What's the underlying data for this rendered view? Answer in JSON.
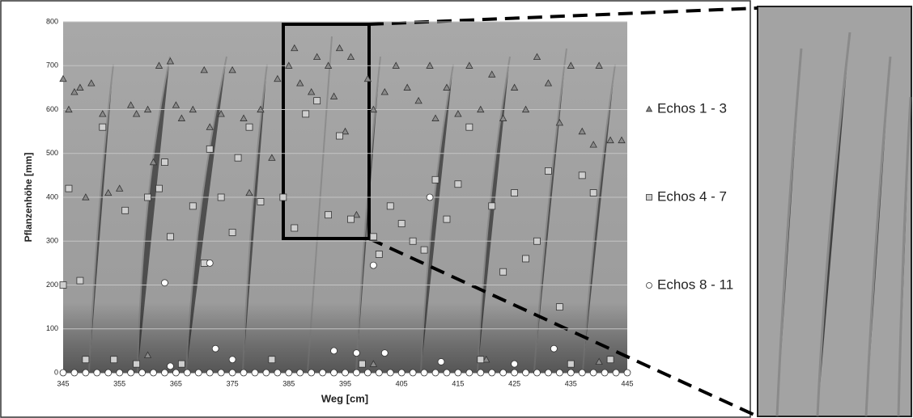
{
  "chart_data": {
    "type": "scatter",
    "xlabel": "Weg [cm]",
    "ylabel": "Pflanzenhöhe [mm]",
    "xlim": [
      345,
      445
    ],
    "xticks": [
      345,
      355,
      365,
      375,
      385,
      395,
      405,
      415,
      425,
      435,
      445
    ],
    "ylim": [
      0,
      800
    ],
    "yticks": [
      0,
      100,
      200,
      300,
      400,
      500,
      600,
      700,
      800
    ],
    "grid": true,
    "legend": "right",
    "series": [
      {
        "name": "Echos 1 - 3",
        "color": "#8a8a8a",
        "marker": "triangle",
        "x": [
          345,
          346,
          347,
          348,
          349,
          350,
          352,
          353,
          355,
          357,
          358,
          360,
          361,
          362,
          364,
          365,
          366,
          368,
          370,
          371,
          373,
          375,
          377,
          378,
          380,
          382,
          383,
          385,
          386,
          387,
          389,
          390,
          392,
          393,
          394,
          395,
          396,
          397,
          399,
          400,
          402,
          404,
          406,
          408,
          410,
          411,
          413,
          415,
          417,
          419,
          421,
          423,
          425,
          427,
          429,
          431,
          433,
          435,
          437,
          439,
          440,
          442,
          444,
          400,
          360,
          420,
          440
        ],
        "y": [
          670,
          600,
          640,
          650,
          400,
          660,
          590,
          410,
          420,
          610,
          590,
          600,
          480,
          700,
          710,
          610,
          580,
          600,
          690,
          560,
          590,
          690,
          580,
          410,
          600,
          490,
          670,
          700,
          740,
          660,
          640,
          720,
          700,
          630,
          740,
          550,
          720,
          360,
          670,
          600,
          640,
          700,
          650,
          620,
          700,
          580,
          650,
          590,
          700,
          600,
          680,
          580,
          650,
          600,
          720,
          660,
          570,
          700,
          550,
          520,
          700,
          530,
          530,
          20,
          40,
          30,
          25
        ]
      },
      {
        "name": "Echos 4 - 7",
        "color": "#cfcfcf",
        "marker": "square",
        "x": [
          345,
          346,
          348,
          349,
          352,
          354,
          356,
          358,
          360,
          362,
          363,
          364,
          366,
          368,
          370,
          371,
          373,
          375,
          376,
          378,
          380,
          382,
          384,
          386,
          388,
          390,
          392,
          394,
          396,
          398,
          400,
          401,
          403,
          405,
          407,
          409,
          411,
          413,
          415,
          417,
          419,
          421,
          423,
          425,
          427,
          429,
          431,
          433,
          435,
          437,
          439,
          442
        ],
        "y": [
          200,
          420,
          210,
          30,
          560,
          30,
          370,
          20,
          400,
          420,
          480,
          310,
          20,
          380,
          250,
          510,
          400,
          320,
          490,
          560,
          390,
          30,
          400,
          330,
          590,
          620,
          360,
          540,
          350,
          20,
          310,
          270,
          380,
          340,
          300,
          280,
          440,
          350,
          430,
          560,
          30,
          380,
          230,
          410,
          260,
          300,
          460,
          150,
          20,
          450,
          410,
          30
        ]
      },
      {
        "name": "Echos 8 - 11",
        "color": "#ffffff",
        "marker": "circle",
        "x": [
          345,
          347,
          349,
          351,
          353,
          355,
          357,
          359,
          361,
          363,
          365,
          367,
          369,
          371,
          373,
          375,
          377,
          379,
          381,
          383,
          385,
          387,
          389,
          391,
          393,
          395,
          397,
          399,
          401,
          403,
          405,
          407,
          409,
          411,
          413,
          415,
          417,
          419,
          421,
          423,
          425,
          427,
          429,
          431,
          433,
          435,
          437,
          439,
          441,
          443,
          445,
          363,
          364,
          371,
          372,
          375,
          393,
          397,
          400,
          402,
          410,
          412,
          425,
          432
        ],
        "y": [
          0,
          0,
          0,
          0,
          0,
          0,
          0,
          0,
          0,
          0,
          0,
          0,
          0,
          0,
          0,
          0,
          0,
          0,
          0,
          0,
          0,
          0,
          0,
          0,
          0,
          0,
          0,
          0,
          0,
          0,
          0,
          0,
          0,
          0,
          0,
          0,
          0,
          0,
          0,
          0,
          0,
          0,
          0,
          0,
          0,
          0,
          0,
          0,
          0,
          0,
          0,
          205,
          15,
          250,
          55,
          30,
          50,
          45,
          245,
          45,
          400,
          25,
          20,
          55
        ]
      }
    ]
  }
}
